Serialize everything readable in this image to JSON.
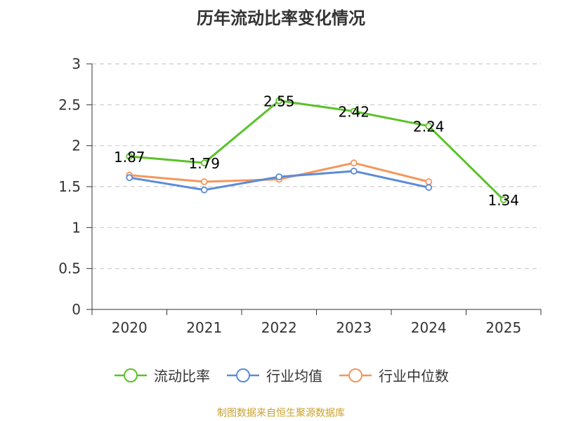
{
  "chart_data": {
    "type": "line",
    "title": "历年流动比率变化情况",
    "categories": [
      "2020",
      "2021",
      "2022",
      "2023",
      "2024",
      "2025"
    ],
    "ylim": [
      0,
      3
    ],
    "yticks": [
      "0",
      "0.5",
      "1",
      "1.5",
      "2",
      "2.5",
      "3"
    ],
    "grid": true,
    "legend_position": "bottom",
    "series": [
      {
        "name": "流动比率",
        "color": "#5ac229",
        "values": [
          1.87,
          1.79,
          2.55,
          2.42,
          2.24,
          1.34
        ],
        "labels": [
          "1.87",
          "1.79",
          "2.55",
          "2.42",
          "2.24",
          "1.34"
        ]
      },
      {
        "name": "行业均值",
        "color": "#5b8bd9",
        "values": [
          1.61,
          1.46,
          1.62,
          1.69,
          1.49,
          null
        ]
      },
      {
        "name": "行业中位数",
        "color": "#f5965a",
        "values": [
          1.64,
          1.56,
          1.59,
          1.79,
          1.56,
          null
        ]
      }
    ],
    "source": "制图数据来自恒生聚源数据库"
  }
}
